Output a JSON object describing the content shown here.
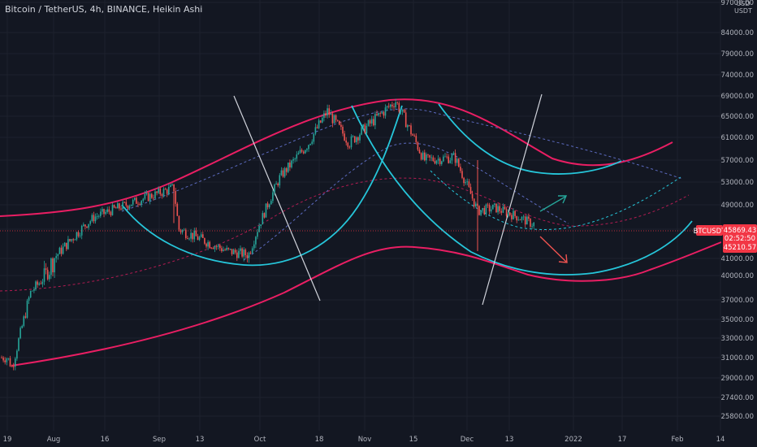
{
  "title": "Bitcoin / TetherUS, 4h, BINANCE, Heikin Ashi",
  "currency_line1": "USD",
  "currency_line2": "USDT",
  "colors": {
    "background": "#131722",
    "grid": "#1e222d",
    "bull": "#26a69a",
    "bear": "#ef5350",
    "pink_channel": "#e91e63",
    "cyan_arc": "#26c6da",
    "white_line": "#d1d4dc",
    "price_line": "#f23645"
  },
  "chart_data": {
    "type": "line",
    "ylim": [
      25000,
      97000
    ],
    "xlim": [
      0,
      932
    ],
    "y_ticks": [
      97000,
      84000,
      79000,
      74000,
      69000,
      65000,
      61000,
      57000,
      53000,
      49000,
      45000,
      41000,
      40000,
      37000,
      35000,
      33000,
      31000,
      29000,
      27400,
      25800
    ],
    "x_ticks": [
      "19",
      "Aug",
      "16",
      "Sep",
      "13",
      "Oct",
      "18",
      "Nov",
      "15",
      "Dec",
      "13",
      "2022",
      "17",
      "Feb",
      "14"
    ],
    "symbol_label": "BTCUSDT",
    "last_price": "45869.43",
    "countdown": "02:52:50",
    "price_low_label": "45210.57",
    "candles_approx": [
      {
        "date": "Jul 19",
        "close": 31000
      },
      {
        "date": "Jul 21",
        "close": 30000
      },
      {
        "date": "Jul 26",
        "close": 38000
      },
      {
        "date": "Aug 1",
        "close": 41000
      },
      {
        "date": "Aug 14",
        "close": 47000
      },
      {
        "date": "Aug 23",
        "close": 49000
      },
      {
        "date": "Sep 6",
        "close": 52000
      },
      {
        "date": "Sep 7",
        "close": 45000
      },
      {
        "date": "Sep 20",
        "close": 42000
      },
      {
        "date": "Sep 28",
        "close": 41500
      },
      {
        "date": "Oct 6",
        "close": 54000
      },
      {
        "date": "Oct 15",
        "close": 60000
      },
      {
        "date": "Oct 20",
        "close": 66000
      },
      {
        "date": "Oct 28",
        "close": 60000
      },
      {
        "date": "Nov 10",
        "close": 68000
      },
      {
        "date": "Nov 18",
        "close": 57000
      },
      {
        "date": "Nov 28",
        "close": 57500
      },
      {
        "date": "Dec 4",
        "close": 48000
      },
      {
        "date": "Dec 10",
        "close": 48500
      },
      {
        "date": "Dec 15",
        "close": 47000
      },
      {
        "date": "Dec 18",
        "close": 45869
      }
    ]
  }
}
